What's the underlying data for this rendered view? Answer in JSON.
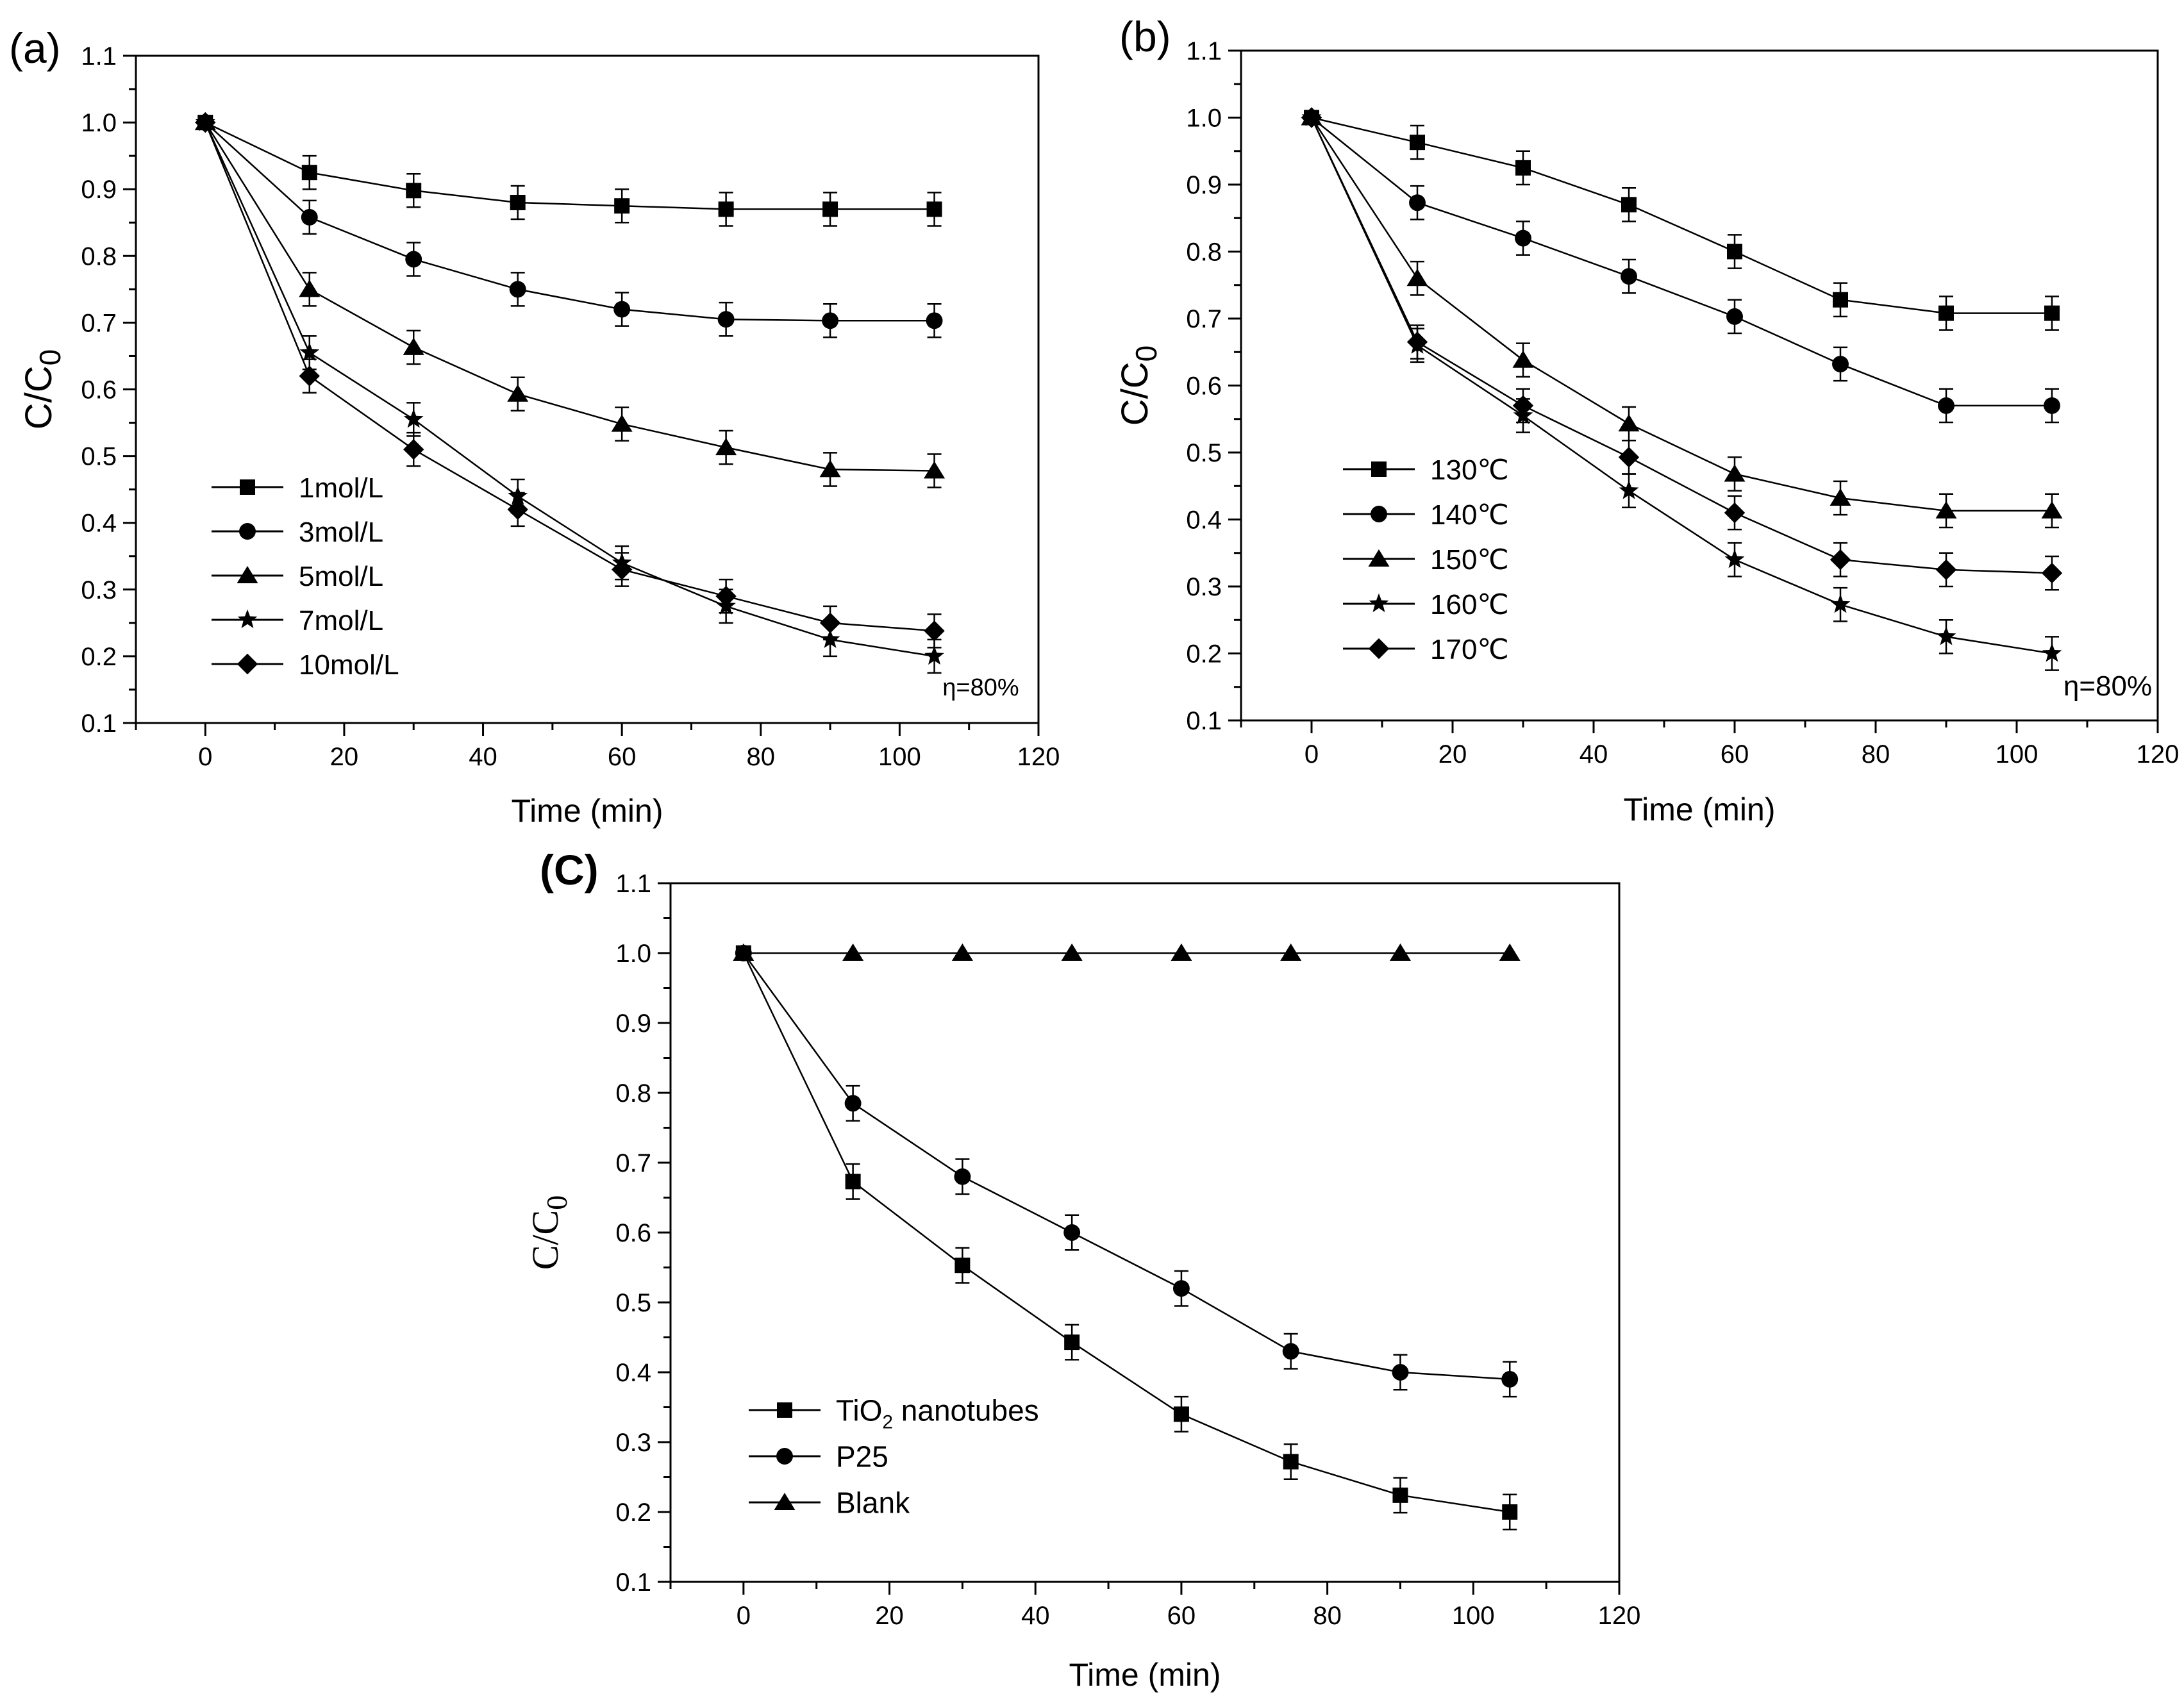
{
  "chart_data": [
    {
      "id": "a",
      "type": "line",
      "panel_label": "(a)",
      "xlabel": "Time (min)",
      "ylabel_main": "C/C",
      "ylabel_sub": "0",
      "xlim": [
        -10,
        120
      ],
      "ylim": [
        0.1,
        1.1
      ],
      "xticks": [
        "0",
        "20",
        "40",
        "60",
        "80",
        "100",
        "120"
      ],
      "yticks": [
        "0.1",
        "0.2",
        "0.3",
        "0.4",
        "0.5",
        "0.6",
        "0.7",
        "0.8",
        "0.9",
        "1.0",
        "1.1"
      ],
      "legend_position": "bottom-left",
      "annotation": "η=80%",
      "x": [
        0,
        15,
        30,
        45,
        60,
        75,
        90,
        105
      ],
      "error": 0.025,
      "series": [
        {
          "name": "1mol/L",
          "marker": "square",
          "values": [
            1.0,
            0.925,
            0.898,
            0.88,
            0.875,
            0.87,
            0.87,
            0.87
          ]
        },
        {
          "name": "3mol/L",
          "marker": "circle",
          "values": [
            1.0,
            0.858,
            0.795,
            0.75,
            0.72,
            0.705,
            0.703,
            0.703
          ]
        },
        {
          "name": "5mol/L",
          "marker": "triangle",
          "values": [
            1.0,
            0.75,
            0.663,
            0.593,
            0.548,
            0.513,
            0.48,
            0.478
          ]
        },
        {
          "name": "7mol/L",
          "marker": "star",
          "values": [
            1.0,
            0.655,
            0.555,
            0.44,
            0.34,
            0.275,
            0.225,
            0.2
          ]
        },
        {
          "name": "10mol/L",
          "marker": "diamond",
          "values": [
            1.0,
            0.62,
            0.51,
            0.42,
            0.33,
            0.29,
            0.25,
            0.238
          ]
        }
      ]
    },
    {
      "id": "b",
      "type": "line",
      "panel_label": "(b)",
      "xlabel": "Time (min)",
      "ylabel_main": "C/C",
      "ylabel_sub": "0",
      "xlim": [
        -10,
        120
      ],
      "ylim": [
        0.1,
        1.1
      ],
      "xticks": [
        "0",
        "20",
        "40",
        "60",
        "80",
        "100",
        "120"
      ],
      "yticks": [
        "0.1",
        "0.2",
        "0.3",
        "0.4",
        "0.5",
        "0.6",
        "0.7",
        "0.8",
        "0.9",
        "1.0",
        "1.1"
      ],
      "legend_position": "bottom-left",
      "annotation": "η=80%",
      "x": [
        0,
        15,
        30,
        45,
        60,
        75,
        90,
        105
      ],
      "error": 0.025,
      "series": [
        {
          "name": "130℃",
          "marker": "square",
          "values": [
            1.0,
            0.963,
            0.925,
            0.87,
            0.8,
            0.728,
            0.708,
            0.708
          ]
        },
        {
          "name": "140℃",
          "marker": "circle",
          "values": [
            1.0,
            0.873,
            0.82,
            0.763,
            0.703,
            0.632,
            0.57,
            0.57
          ]
        },
        {
          "name": "150℃",
          "marker": "triangle",
          "values": [
            1.0,
            0.76,
            0.638,
            0.543,
            0.468,
            0.432,
            0.413,
            0.413
          ]
        },
        {
          "name": "160℃",
          "marker": "star",
          "values": [
            1.0,
            0.66,
            0.555,
            0.443,
            0.34,
            0.273,
            0.225,
            0.2
          ]
        },
        {
          "name": "170℃",
          "marker": "diamond",
          "values": [
            1.0,
            0.665,
            0.57,
            0.493,
            0.41,
            0.34,
            0.325,
            0.32
          ]
        }
      ]
    },
    {
      "id": "c",
      "type": "line",
      "panel_label": "(C)",
      "xlabel": "Time (min)",
      "ylabel_main": "C/C",
      "ylabel_sub": "0",
      "xlim": [
        -10,
        120
      ],
      "ylim": [
        0.1,
        1.1
      ],
      "xticks": [
        "0",
        "20",
        "40",
        "60",
        "80",
        "100",
        "120"
      ],
      "yticks": [
        "0.1",
        "0.2",
        "0.3",
        "0.4",
        "0.5",
        "0.6",
        "0.7",
        "0.8",
        "0.9",
        "1.0",
        "1.1"
      ],
      "legend_position": "bottom-left",
      "x": [
        0,
        15,
        30,
        45,
        60,
        75,
        90,
        105
      ],
      "error": 0.025,
      "series": [
        {
          "name": "TiO",
          "name_sub": "2",
          "name_tail": " nanotubes",
          "marker": "square",
          "values": [
            1.0,
            0.673,
            0.553,
            0.443,
            0.34,
            0.272,
            0.224,
            0.2
          ]
        },
        {
          "name": "P25",
          "marker": "circle",
          "values": [
            1.0,
            0.785,
            0.68,
            0.6,
            0.52,
            0.43,
            0.4,
            0.39
          ]
        },
        {
          "name": "Blank",
          "marker": "triangle",
          "values": [
            1.0,
            1.0,
            1.0,
            1.0,
            1.0,
            1.0,
            1.0,
            1.0
          ],
          "no_error": true
        }
      ]
    }
  ]
}
